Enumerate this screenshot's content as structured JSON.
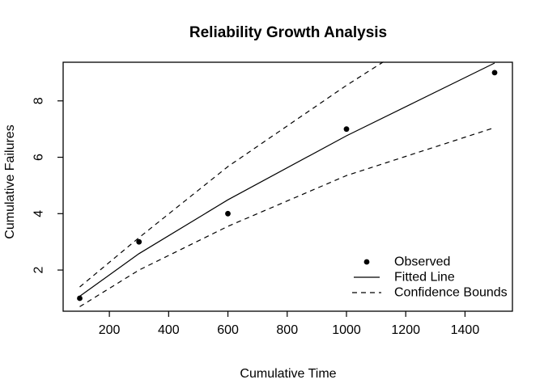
{
  "chart_data": {
    "type": "line",
    "title": "Reliability Growth Analysis",
    "xlabel": "Cumulative Time",
    "ylabel": "Cumulative Failures",
    "x": [
      100,
      300,
      600,
      1000,
      1500
    ],
    "series": [
      {
        "name": "Observed",
        "style": "points",
        "values": [
          1,
          3,
          4,
          7,
          9
        ]
      },
      {
        "name": "Fitted Line",
        "style": "solid",
        "values": [
          1.07,
          2.58,
          4.49,
          6.76,
          9.34
        ]
      },
      {
        "name": "Upper Confidence Bound",
        "style": "dashed",
        "values": [
          1.4,
          3.15,
          5.67,
          8.55,
          11.9
        ]
      },
      {
        "name": "Lower Confidence Bound",
        "style": "dashed",
        "values": [
          0.7,
          2.0,
          3.55,
          5.35,
          7.05
        ]
      }
    ],
    "xlim": [
      44,
      1560
    ],
    "ylim": [
      0.54,
      9.37
    ],
    "xticks": [
      200,
      400,
      600,
      800,
      1000,
      1200,
      1400
    ],
    "yticks": [
      2,
      4,
      6,
      8
    ],
    "grid": false,
    "legend": {
      "position": "bottom-right",
      "entries": [
        {
          "label": "Observed",
          "marker": "point"
        },
        {
          "label": "Fitted Line",
          "marker": "solid-line"
        },
        {
          "label": "Confidence Bounds",
          "marker": "dashed-line"
        }
      ]
    },
    "colors": {
      "foreground": "#000000",
      "background": "#ffffff"
    }
  }
}
